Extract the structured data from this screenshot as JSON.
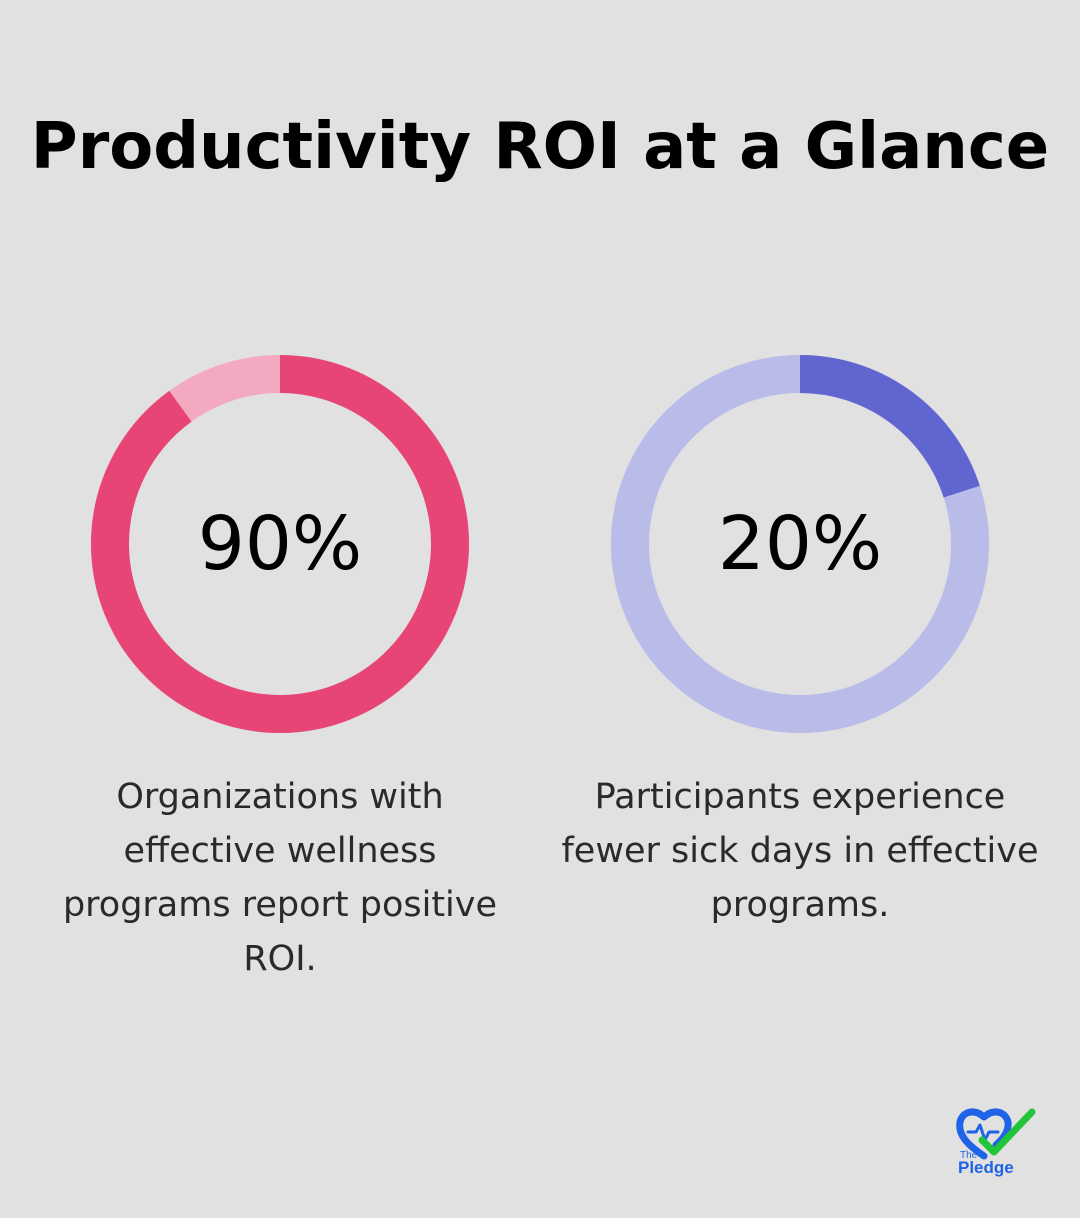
{
  "title": "Productivity ROI at a Glance",
  "chart_data": [
    {
      "type": "pie",
      "variant": "donut",
      "value": 90,
      "remainder": 10,
      "label": "90%",
      "caption": "Organizations with effective wellness programs report positive ROI.",
      "colors": {
        "filled": "#e64575",
        "remainder": "#f3a9c0"
      }
    },
    {
      "type": "pie",
      "variant": "donut",
      "value": 20,
      "remainder": 80,
      "label": "20%",
      "caption": "Participants experience fewer sick days in effective programs.",
      "colors": {
        "filled": "#6065d0",
        "remainder": "#b9bce9"
      }
    }
  ],
  "logo": {
    "icon": "heart-check-icon",
    "top_text": "The",
    "bottom_text": "Pledge",
    "colors": {
      "heart": "#1e63e8",
      "check": "#22c43a"
    }
  }
}
